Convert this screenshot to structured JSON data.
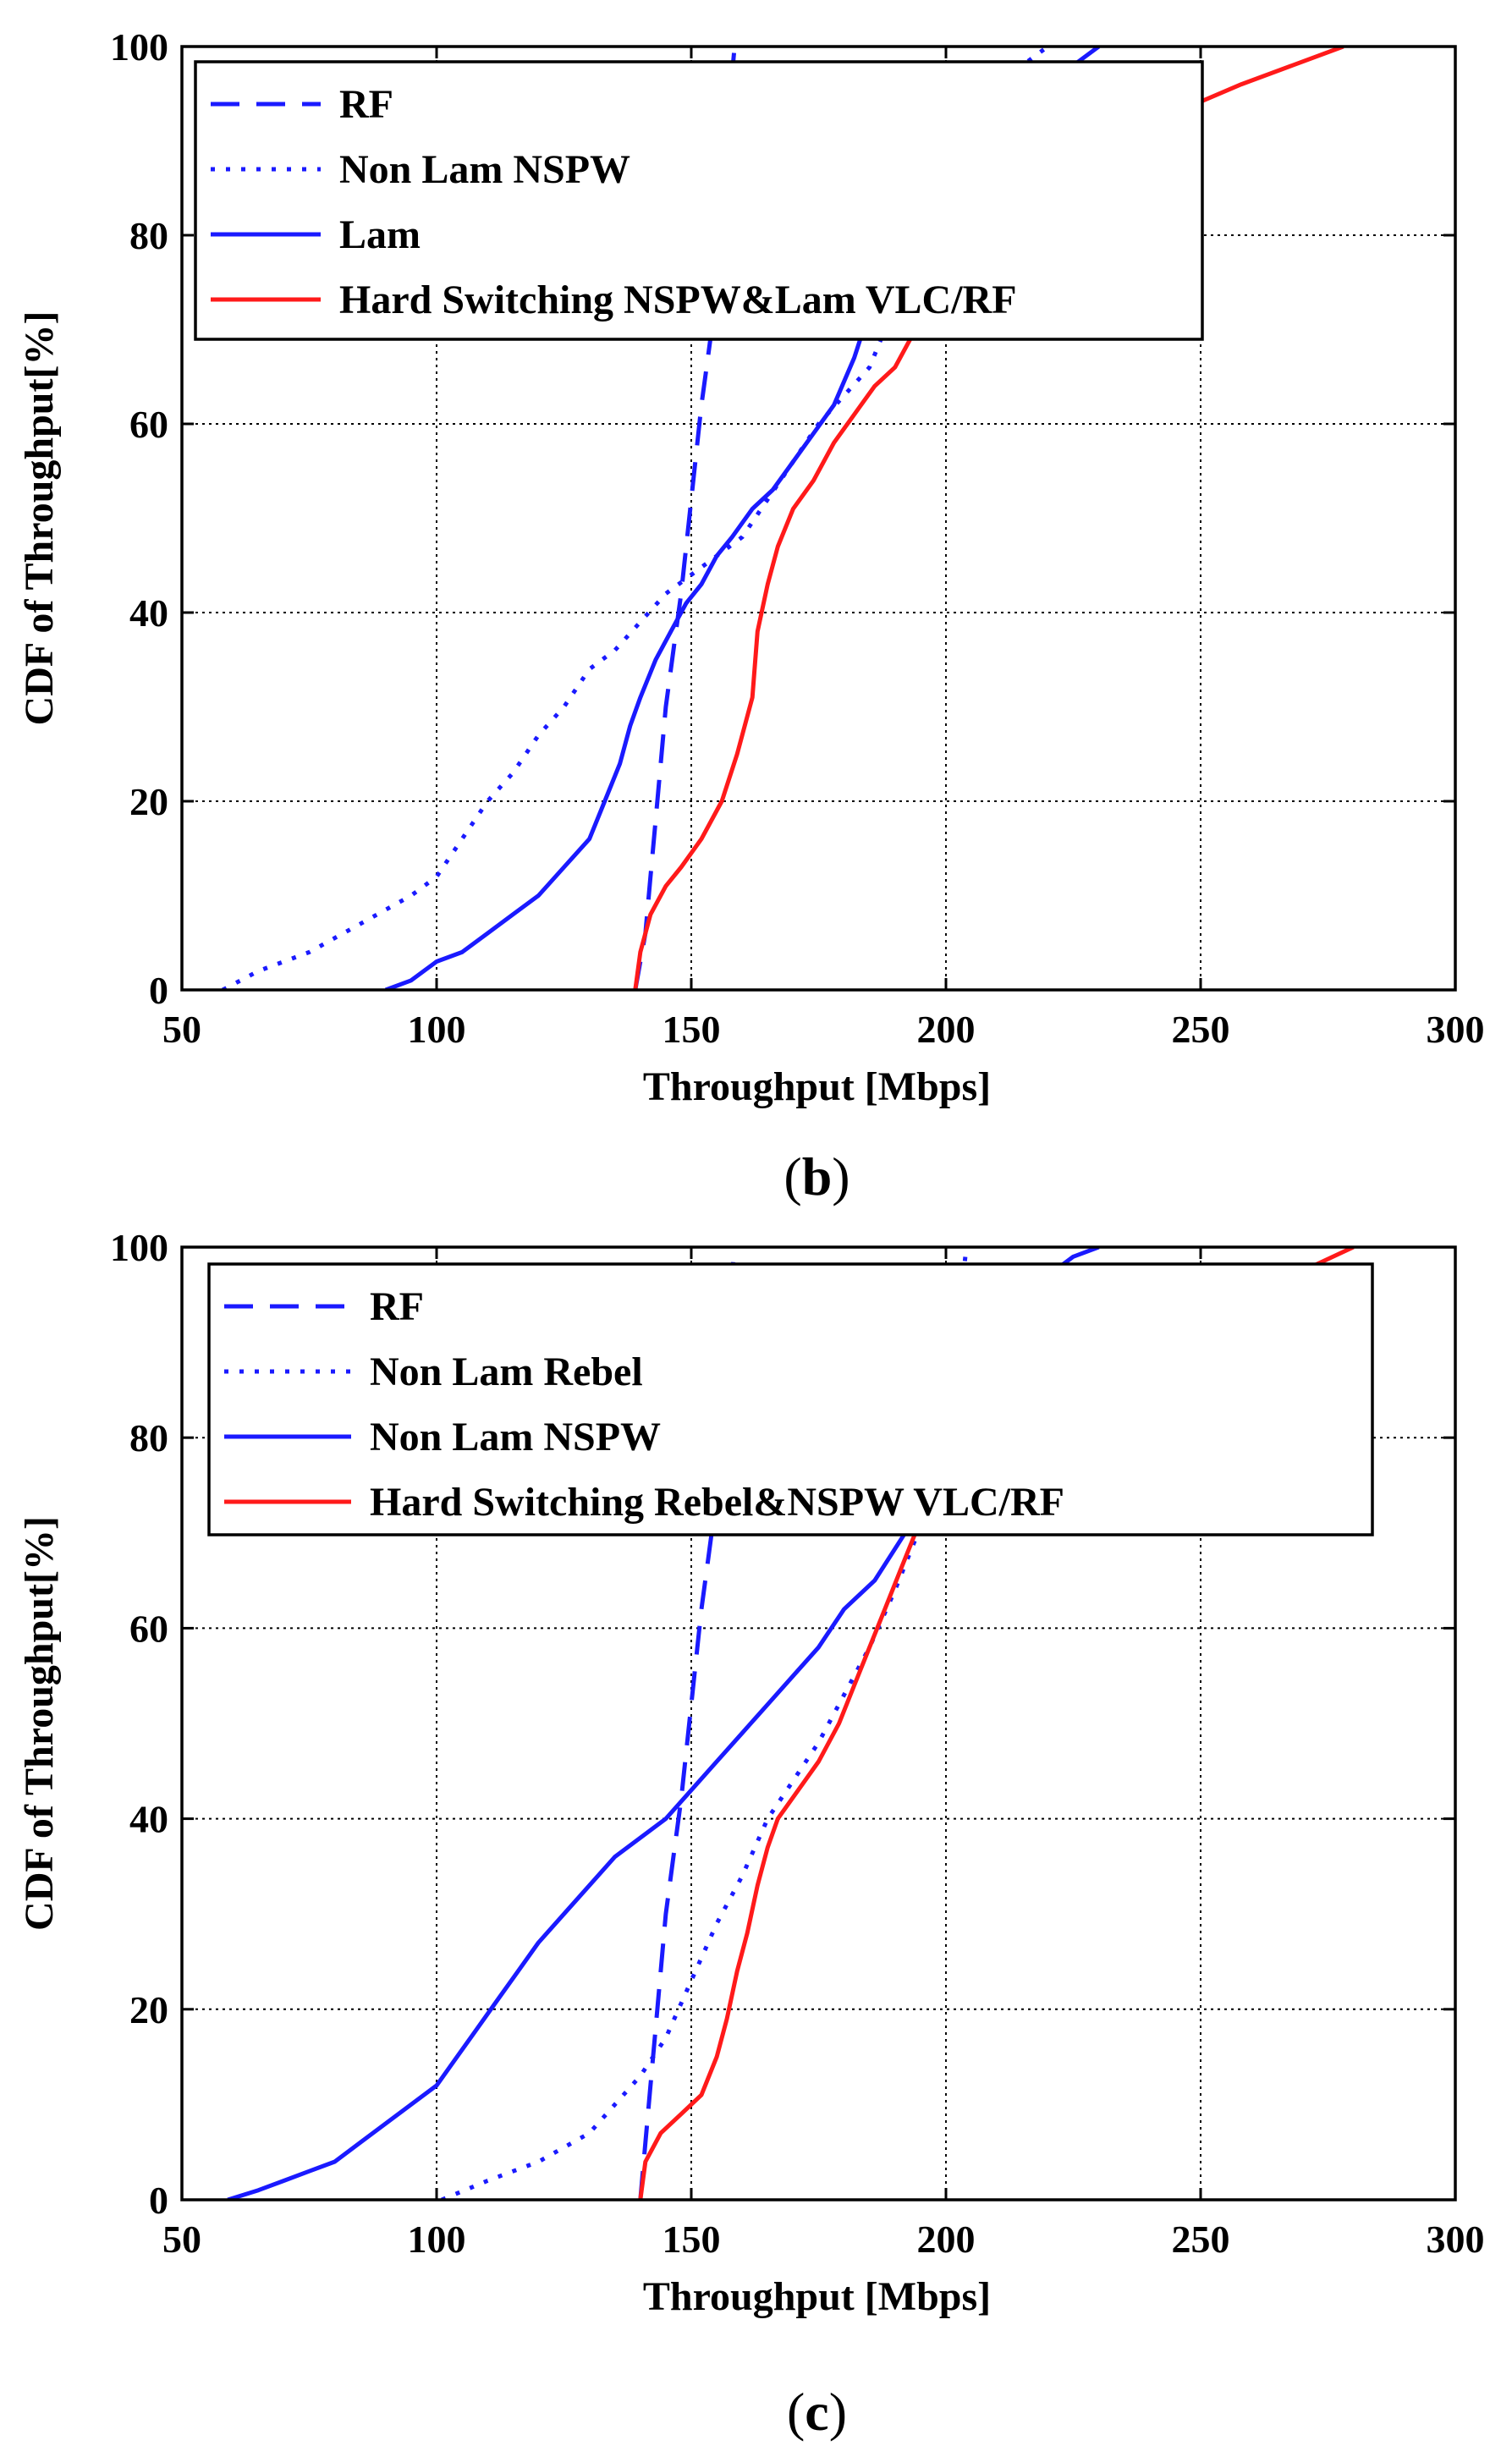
{
  "chart_data": [
    {
      "panel_id": "b",
      "panel_label": {
        "open": "(",
        "letter": "b",
        "close": ")"
      },
      "type": "line",
      "xlabel": "Throughput [Mbps]",
      "ylabel": "CDF of Throughput[%]",
      "xlim": [
        50,
        300
      ],
      "ylim": [
        0,
        100
      ],
      "xticks": [
        50,
        100,
        150,
        200,
        250,
        300
      ],
      "yticks": [
        0,
        20,
        40,
        60,
        80,
        100
      ],
      "grid": true,
      "legend_position": "top-left",
      "series": [
        {
          "name": "RF",
          "color": "#1a1aff",
          "style": "dashed",
          "points": [
            [
              139,
              0
            ],
            [
              141,
              6
            ],
            [
              142,
              12
            ],
            [
              143,
              18
            ],
            [
              144,
              24
            ],
            [
              145,
              30
            ],
            [
              146,
              34
            ],
            [
              147,
              38
            ],
            [
              148,
              42
            ],
            [
              149,
              47
            ],
            [
              150,
              52
            ],
            [
              151,
              57
            ],
            [
              152,
              62
            ],
            [
              153,
              66
            ],
            [
              154,
              70
            ],
            [
              155,
              78
            ],
            [
              156,
              85
            ],
            [
              157,
              92
            ],
            [
              158,
              97
            ],
            [
              158.5,
              100
            ]
          ]
        },
        {
          "name": "Non Lam NSPW",
          "color": "#1a1aff",
          "style": "dotted",
          "points": [
            [
              58,
              0
            ],
            [
              65,
              2
            ],
            [
              75,
              4
            ],
            [
              85,
              7
            ],
            [
              95,
              10
            ],
            [
              100,
              12
            ],
            [
              105,
              16
            ],
            [
              110,
              20
            ],
            [
              115,
              23
            ],
            [
              120,
              27
            ],
            [
              125,
              30
            ],
            [
              130,
              34
            ],
            [
              135,
              36
            ],
            [
              140,
              39
            ],
            [
              145,
              42
            ],
            [
              150,
              44
            ],
            [
              155,
              46
            ],
            [
              160,
              48
            ],
            [
              165,
              52
            ],
            [
              170,
              56
            ],
            [
              175,
              60
            ],
            [
              180,
              63
            ],
            [
              185,
              66
            ],
            [
              188,
              70
            ],
            [
              192,
              75
            ],
            [
              196,
              80
            ],
            [
              200,
              85
            ],
            [
              205,
              90
            ],
            [
              210,
              95
            ],
            [
              215,
              98
            ],
            [
              220,
              100
            ]
          ]
        },
        {
          "name": "Lam",
          "color": "#1a1aff",
          "style": "solid",
          "points": [
            [
              90,
              0
            ],
            [
              95,
              1
            ],
            [
              100,
              3
            ],
            [
              105,
              4
            ],
            [
              110,
              6
            ],
            [
              115,
              8
            ],
            [
              120,
              10
            ],
            [
              125,
              13
            ],
            [
              130,
              16
            ],
            [
              133,
              20
            ],
            [
              136,
              24
            ],
            [
              138,
              28
            ],
            [
              140,
              31
            ],
            [
              143,
              35
            ],
            [
              146,
              38
            ],
            [
              149,
              41
            ],
            [
              152,
              43
            ],
            [
              155,
              46
            ],
            [
              158,
              48
            ],
            [
              162,
              51
            ],
            [
              166,
              53
            ],
            [
              170,
              56
            ],
            [
              174,
              59
            ],
            [
              178,
              62
            ],
            [
              182,
              67
            ],
            [
              185,
              72
            ],
            [
              190,
              77
            ],
            [
              195,
              82
            ],
            [
              200,
              86
            ],
            [
              205,
              88
            ],
            [
              210,
              91
            ],
            [
              215,
              94
            ],
            [
              220,
              96
            ],
            [
              225,
              98
            ],
            [
              230,
              100
            ]
          ]
        },
        {
          "name": "Hard Switching NSPW&Lam VLC/RF",
          "color": "#ff1a1a",
          "style": "solid",
          "points": [
            [
              139,
              0
            ],
            [
              140,
              4
            ],
            [
              142,
              8
            ],
            [
              145,
              11
            ],
            [
              148,
              13
            ],
            [
              152,
              16
            ],
            [
              156,
              20
            ],
            [
              159,
              25
            ],
            [
              162,
              31
            ],
            [
              163,
              38
            ],
            [
              165,
              43
            ],
            [
              167,
              47
            ],
            [
              170,
              51
            ],
            [
              174,
              54
            ],
            [
              178,
              58
            ],
            [
              182,
              61
            ],
            [
              186,
              64
            ],
            [
              190,
              66
            ],
            [
              193,
              69
            ],
            [
              197,
              72
            ],
            [
              202,
              76
            ],
            [
              208,
              80
            ],
            [
              215,
              84
            ],
            [
              222,
              88
            ],
            [
              232,
              91
            ],
            [
              245,
              93
            ],
            [
              258,
              96
            ],
            [
              268,
              98
            ],
            [
              278,
              100
            ]
          ]
        }
      ]
    },
    {
      "panel_id": "c",
      "panel_label": {
        "open": "(",
        "letter": "c",
        "close": ")"
      },
      "type": "line",
      "xlabel": "Throughput [Mbps]",
      "ylabel": "CDF of Throughput[%]",
      "xlim": [
        50,
        300
      ],
      "ylim": [
        0,
        100
      ],
      "xticks": [
        50,
        100,
        150,
        200,
        250,
        300
      ],
      "yticks": [
        0,
        20,
        40,
        60,
        80,
        100
      ],
      "grid": true,
      "legend_position": "top-left",
      "series": [
        {
          "name": "RF",
          "color": "#1a1aff",
          "style": "dashed",
          "points": [
            [
              140,
              0
            ],
            [
              141,
              6
            ],
            [
              142,
              12
            ],
            [
              143,
              18
            ],
            [
              144,
              24
            ],
            [
              145,
              30
            ],
            [
              146,
              34
            ],
            [
              147,
              38
            ],
            [
              148,
              42
            ],
            [
              149,
              47
            ],
            [
              150,
              52
            ],
            [
              151,
              57
            ],
            [
              152,
              62
            ],
            [
              153,
              66
            ],
            [
              154,
              70
            ],
            [
              155,
              78
            ],
            [
              156,
              85
            ],
            [
              157,
              92
            ],
            [
              158,
              97
            ],
            [
              158.5,
              100
            ]
          ]
        },
        {
          "name": "Non Lam Rebel",
          "color": "#1a1aff",
          "style": "dotted",
          "points": [
            [
              101,
              0
            ],
            [
              110,
              2
            ],
            [
              120,
              4
            ],
            [
              130,
              7
            ],
            [
              135,
              10
            ],
            [
              140,
              13
            ],
            [
              145,
              17
            ],
            [
              150,
              23
            ],
            [
              155,
              29
            ],
            [
              160,
              34
            ],
            [
              165,
              40
            ],
            [
              170,
              44
            ],
            [
              175,
              48
            ],
            [
              180,
              53
            ],
            [
              185,
              58
            ],
            [
              190,
              64
            ],
            [
              193,
              68
            ],
            [
              196,
              72
            ],
            [
              198,
              78
            ],
            [
              200,
              84
            ],
            [
              202,
              90
            ],
            [
              203,
              95
            ],
            [
              204,
              100
            ]
          ]
        },
        {
          "name": "Non Lam NSPW",
          "color": "#1a1aff",
          "style": "solid",
          "points": [
            [
              59,
              0
            ],
            [
              65,
              1
            ],
            [
              70,
              2
            ],
            [
              75,
              3
            ],
            [
              80,
              4
            ],
            [
              85,
              6
            ],
            [
              90,
              8
            ],
            [
              95,
              10
            ],
            [
              100,
              12
            ],
            [
              104,
              15
            ],
            [
              108,
              18
            ],
            [
              112,
              21
            ],
            [
              116,
              24
            ],
            [
              120,
              27
            ],
            [
              125,
              30
            ],
            [
              130,
              33
            ],
            [
              135,
              36
            ],
            [
              140,
              38
            ],
            [
              145,
              40
            ],
            [
              150,
              43
            ],
            [
              155,
              46
            ],
            [
              160,
              49
            ],
            [
              165,
              52
            ],
            [
              170,
              55
            ],
            [
              175,
              58
            ],
            [
              180,
              62
            ],
            [
              186,
              65
            ],
            [
              192,
              70
            ],
            [
              196,
              75
            ],
            [
              200,
              80
            ],
            [
              205,
              85
            ],
            [
              210,
              90
            ],
            [
              215,
              94
            ],
            [
              220,
              97
            ],
            [
              225,
              99
            ],
            [
              230,
              100
            ]
          ]
        },
        {
          "name": "Hard Switching Rebel&NSPW VLC/RF",
          "color": "#ff1a1a",
          "style": "solid",
          "points": [
            [
              140,
              0
            ],
            [
              141,
              4
            ],
            [
              144,
              7
            ],
            [
              148,
              9
            ],
            [
              152,
              11
            ],
            [
              155,
              15
            ],
            [
              157,
              19
            ],
            [
              159,
              24
            ],
            [
              161,
              28
            ],
            [
              163,
              33
            ],
            [
              165,
              37
            ],
            [
              167,
              40
            ],
            [
              171,
              43
            ],
            [
              175,
              46
            ],
            [
              179,
              50
            ],
            [
              182,
              54
            ],
            [
              185,
              58
            ],
            [
              188,
              62
            ],
            [
              191,
              66
            ],
            [
              194,
              70
            ],
            [
              198,
              74
            ],
            [
              205,
              78
            ],
            [
              212,
              82
            ],
            [
              220,
              86
            ],
            [
              228,
              89
            ],
            [
              238,
              92
            ],
            [
              250,
              94
            ],
            [
              262,
              96
            ],
            [
              272,
              98
            ],
            [
              280,
              100
            ]
          ]
        }
      ]
    }
  ]
}
